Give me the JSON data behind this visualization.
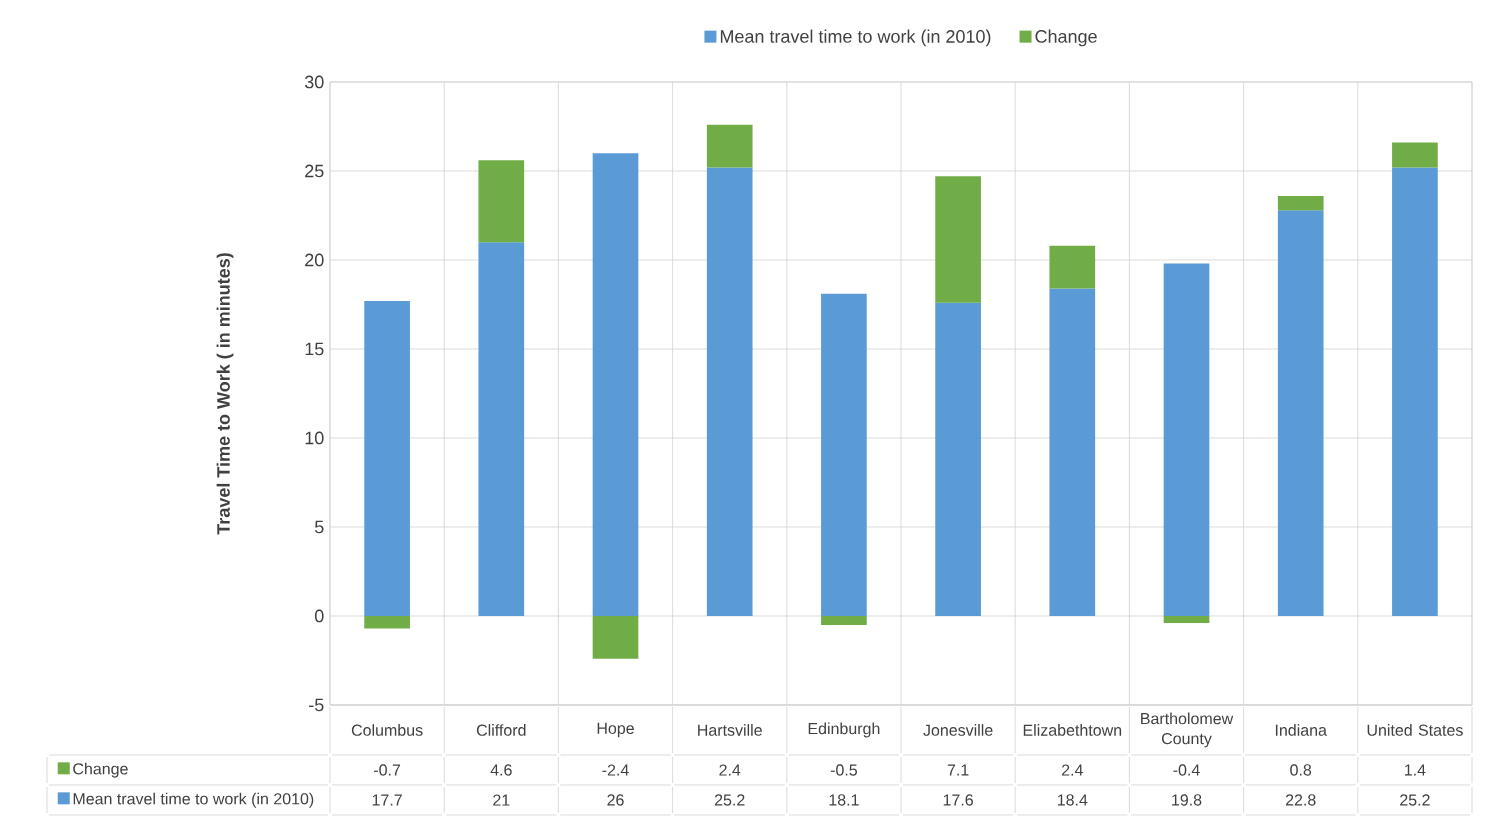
{
  "chart_data": {
    "type": "bar",
    "stacked": true,
    "ylabel": "Travel Time to Work ( in minutes)",
    "categories": [
      "Columbus",
      "Clifford",
      "Hope",
      "Hartsville",
      "Edinburgh",
      "Jonesville",
      "Elizabethtown",
      "Bartholomew County",
      "Indiana",
      "United States"
    ],
    "series": [
      {
        "name": "Mean travel time to work (in 2010)",
        "color": "#5b9bd5",
        "values": [
          17.7,
          21,
          26,
          25.2,
          18.1,
          17.6,
          18.4,
          19.8,
          22.8,
          25.2
        ]
      },
      {
        "name": "Change",
        "color": "#70ad47",
        "values": [
          -0.7,
          4.6,
          -2.4,
          2.4,
          -0.5,
          7.1,
          2.4,
          -0.4,
          0.8,
          1.4
        ]
      }
    ],
    "ylim": [
      -5,
      30
    ],
    "yticks": [
      -5,
      0,
      5,
      10,
      15,
      20,
      25,
      30
    ],
    "grid": true,
    "legend": "top",
    "data_labels": true
  }
}
